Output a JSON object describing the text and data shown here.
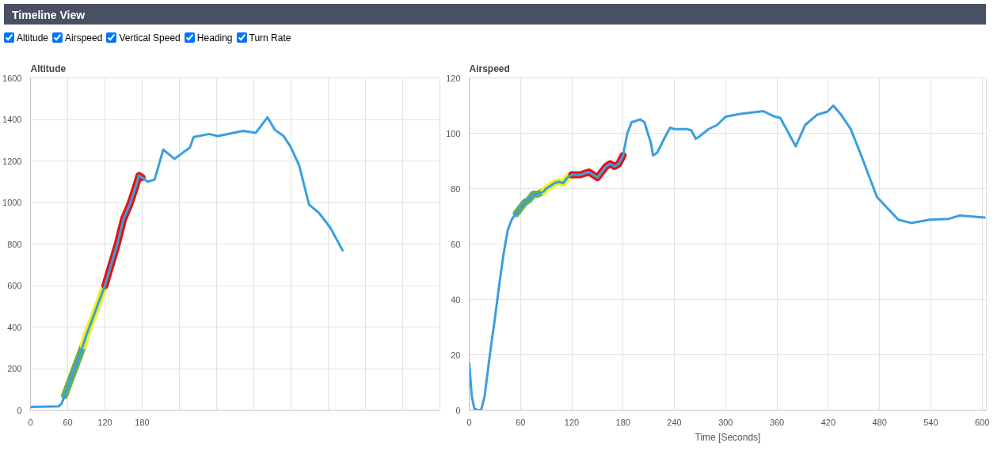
{
  "chart_data": [
    {
      "type": "line",
      "title": "Altitude",
      "annotations": [
        "Timeline View",
        "Altitude",
        "Airspeed",
        "Vertical Speed",
        "Heading",
        "Turn Rate"
      ],
      "xlim": [
        0,
        660
      ],
      "xticks": [
        0,
        60,
        120,
        180,
        {
          "value": 240,
          "label": null
        },
        {
          "value": 300,
          "label": null
        },
        {
          "value": 360,
          "label": null
        },
        {
          "value": 420,
          "label": null
        },
        {
          "value": 480,
          "label": null
        },
        {
          "value": 540,
          "label": null
        },
        {
          "value": 600,
          "label": null
        }
      ],
      "ylim": [
        0,
        1600
      ],
      "yticks": [
        0,
        200,
        400,
        600,
        800,
        1000,
        1200,
        1400,
        1600
      ],
      "grid": true,
      "series": [
        {
          "color": "#6ab04c",
          "x": [
            55,
            60,
            70,
            80,
            85
          ],
          "values": [
            70,
            110,
            190,
            270,
            310
          ]
        },
        {
          "color": "#f2f21c",
          "x": [
            85,
            90,
            100,
            110,
            120
          ],
          "values": [
            310,
            360,
            440,
            520,
            600
          ]
        },
        {
          "color": "#e81010",
          "x": [
            120,
            130,
            140,
            150,
            160,
            170,
            175,
            180
          ],
          "values": [
            600,
            700,
            800,
            920,
            990,
            1080,
            1130,
            1120
          ]
        },
        {
          "color": "#3a9fe0",
          "x": [
            0,
            45,
            50,
            55,
            60,
            70,
            80,
            90,
            100,
            110,
            120,
            130,
            140,
            150,
            160,
            170,
            175,
            180,
            189,
            200,
            214,
            232,
            257,
            263,
            288,
            302,
            343,
            363,
            382,
            394,
            408,
            419,
            433,
            449,
            465,
            483,
            503
          ],
          "values": [
            15,
            18,
            30,
            70,
            110,
            190,
            270,
            360,
            440,
            520,
            600,
            700,
            800,
            920,
            990,
            1080,
            1130,
            1120,
            1100,
            1110,
            1255,
            1210,
            1265,
            1315,
            1330,
            1320,
            1345,
            1335,
            1410,
            1350,
            1320,
            1270,
            1180,
            990,
            950,
            880,
            770
          ]
        }
      ]
    },
    {
      "type": "line",
      "title": "Airspeed",
      "xlabel": "Time [Seconds]",
      "xlim": [
        0,
        605
      ],
      "xticks": [
        0,
        60,
        120,
        180,
        240,
        300,
        360,
        420,
        480,
        540,
        600
      ],
      "ylim": [
        0,
        120
      ],
      "yticks": [
        0,
        20,
        40,
        60,
        80,
        100,
        120
      ],
      "grid": true,
      "series": [
        {
          "color": "#6ab04c",
          "x": [
            55,
            60,
            65,
            70,
            75,
            80,
            87
          ],
          "values": [
            71,
            73,
            75,
            76,
            78,
            78,
            79
          ]
        },
        {
          "color": "#f2f21c",
          "x": [
            87,
            90,
            100,
            105,
            110,
            115,
            120
          ],
          "values": [
            79,
            80,
            82,
            82.5,
            82,
            84,
            85
          ]
        },
        {
          "color": "#e81010",
          "x": [
            120,
            130,
            140,
            150,
            155,
            160,
            165,
            170,
            175,
            180
          ],
          "values": [
            85,
            85,
            86,
            84,
            86,
            88,
            89,
            88,
            89,
            92
          ]
        },
        {
          "color": "#3a9fe0",
          "x": [
            0,
            3,
            6,
            10,
            14,
            18,
            25,
            30,
            35,
            40,
            45,
            50,
            55,
            60,
            65,
            70,
            75,
            80,
            87,
            90,
            100,
            105,
            110,
            115,
            120,
            130,
            140,
            150,
            155,
            160,
            165,
            170,
            175,
            180,
            185,
            190,
            200,
            205,
            213,
            215,
            220,
            228,
            235,
            240,
            255,
            260,
            265,
            270,
            280,
            290,
            300,
            317,
            344,
            355,
            364,
            382,
            393,
            407,
            419,
            426,
            435,
            446,
            457,
            477,
            502,
            517,
            539,
            561,
            574,
            603
          ],
          "values": [
            17,
            5,
            0.5,
            0,
            0,
            5,
            22,
            33,
            45,
            56,
            65,
            69,
            71,
            73,
            75,
            76,
            78,
            78,
            79,
            80,
            82,
            82.5,
            82,
            84,
            85,
            85,
            86,
            84,
            86,
            88,
            89,
            88,
            89,
            92,
            100,
            104,
            105,
            104,
            96,
            92,
            93,
            98,
            102,
            101.5,
            101.5,
            101,
            98,
            99,
            101.5,
            103,
            106,
            107,
            108,
            106.3,
            105.5,
            95.3,
            103,
            106.7,
            107.8,
            110,
            106.7,
            101.7,
            93.3,
            77,
            68.8,
            67.6,
            68.8,
            69.1,
            70.3,
            69.6
          ]
        }
      ]
    }
  ]
}
